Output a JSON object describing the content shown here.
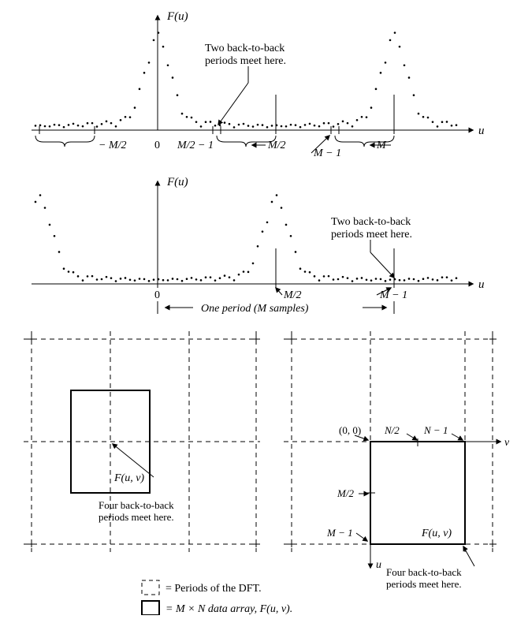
{
  "colors": {
    "bg": "#ffffff",
    "stroke": "#000000",
    "dot": "#000000"
  },
  "fontsize": {
    "label": 14,
    "math": 15
  },
  "plot1": {
    "axis_label_y": "F(u)",
    "axis_label_x": "u",
    "annotation": "Two back-to-back\nperiods meet here.",
    "ticks": {
      "neg_m2": "− M/2",
      "zero": "0",
      "m2_minus1": "M/2 − 1",
      "m2": "M/2",
      "m_minus1": "M − 1",
      "m": "M"
    }
  },
  "plot2": {
    "axis_label_y": "F(u)",
    "axis_label_x": "u",
    "annotation": "Two back-to-back\nperiods meet here.",
    "ticks": {
      "zero": "0",
      "m2": "M/2",
      "m_minus1": "M − 1"
    },
    "period_label": "One period (M samples)"
  },
  "diagram2d": {
    "Fuv": "F(u, v)",
    "four_meet": "Four back-to-back\nperiods meet here.",
    "coords": {
      "origin": "(0, 0)",
      "n2": "N/2",
      "n_minus1": "N − 1",
      "m2": "M/2",
      "m_minus1": "M − 1"
    },
    "axes": {
      "u": "u",
      "v": "v"
    }
  },
  "legend": {
    "dft_periods": "= Periods of the DFT.",
    "data_array": "= M × N data array, F(u, v)."
  }
}
